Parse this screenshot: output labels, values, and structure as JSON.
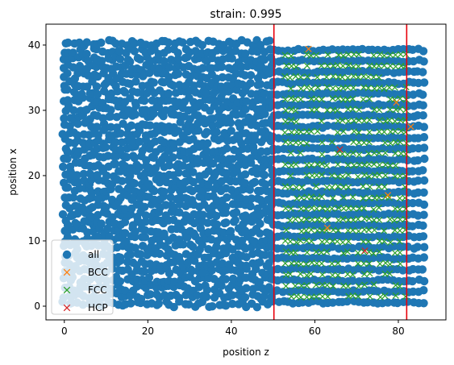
{
  "chart_data": {
    "type": "scatter",
    "title": "strain: 0.995",
    "xlabel": "position z",
    "ylabel": "position x",
    "xlim": [
      -4.4,
      91.4
    ],
    "ylim": [
      -2.1,
      43.2
    ],
    "xticks": [
      0,
      20,
      40,
      60,
      80
    ],
    "yticks": [
      0,
      10,
      20,
      30,
      40
    ],
    "legend_position": "lower-left",
    "vlines": [
      {
        "x": 50.2,
        "color": "#e8000b"
      },
      {
        "x": 82.0,
        "color": "#e8000b"
      }
    ],
    "series": [
      {
        "name": "all",
        "marker": "circle",
        "color": "#1f77b4",
        "regions": [
          {
            "x_range": [
              0,
              50
            ],
            "y_range": [
              0.3,
              41.2
            ],
            "pattern": "dense-disordered"
          },
          {
            "x_range": [
              50,
              86.8
            ],
            "y_range": [
              0.3,
              40.3
            ],
            "pattern": "layered-crystal"
          }
        ]
      },
      {
        "name": "BCC",
        "marker": "x",
        "color": "#ff7f0e",
        "points": [
          [
            58.5,
            39.4
          ],
          [
            79.5,
            31.2
          ],
          [
            77.5,
            17.0
          ],
          [
            83.0,
            27.5
          ],
          [
            63.0,
            12.0
          ]
        ]
      },
      {
        "name": "FCC",
        "marker": "x",
        "color": "#2ca02c",
        "regions": [
          {
            "x_range": [
              53.0,
              82.5
            ],
            "y_range": [
              1.5,
              40.0
            ],
            "pattern": "layered-crystal"
          }
        ]
      },
      {
        "name": "HCP",
        "marker": "x",
        "color": "#d62728",
        "points": [
          [
            66.0,
            24.0
          ],
          [
            72.0,
            8.5
          ]
        ]
      }
    ]
  }
}
